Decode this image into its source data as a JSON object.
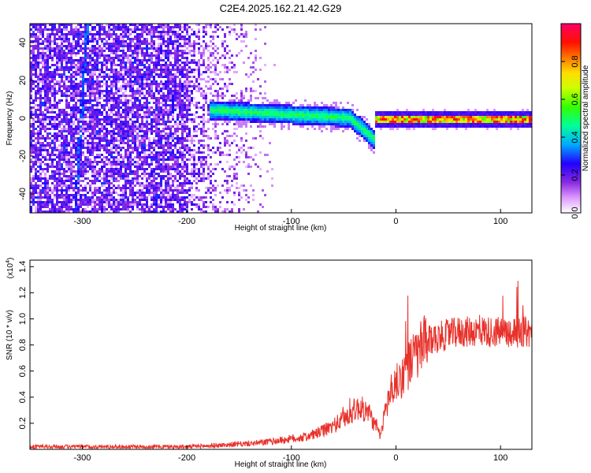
{
  "figure": {
    "title": "C2E4.2025.162.21.42.G29"
  },
  "chart_data": [
    {
      "type": "heatmap",
      "title": "C2E4.2025.162.21.42.G29",
      "xlabel": "Height of straight line (km)",
      "ylabel": "Frequency (Hz)",
      "xlim": [
        -350,
        130
      ],
      "ylim": [
        -50,
        50
      ],
      "x_ticks": [
        -300,
        -200,
        -100,
        0,
        100
      ],
      "y_ticks": [
        -40,
        -20,
        0,
        20,
        40
      ],
      "grid": false,
      "colorbar": {
        "label": "Normalized spectral amplitude",
        "range": [
          0,
          1
        ],
        "ticks": [
          0.0,
          0.2,
          0.4,
          0.6,
          0.8
        ],
        "tick_labels": [
          "0.0",
          "0.2",
          "0.4",
          "0.6",
          "0.8"
        ],
        "colormap": [
          "#ffffff",
          "#cc66ff",
          "#6600ff",
          "#0000ff",
          "#00ccff",
          "#00ff66",
          "#66ff00",
          "#ffff00",
          "#ff6600",
          "#ff0000",
          "#ff0066"
        ]
      },
      "features": {
        "noise_region_x": [
          -350,
          -115
        ],
        "signal_track_x": [
          -180,
          130
        ],
        "signal_track_freq_start": 5,
        "signal_track_freq_end": 0,
        "strong_tone_x": [
          -20,
          130
        ],
        "strong_tone_freq": 0
      }
    },
    {
      "type": "line",
      "xlabel": "Height of straight line (km)",
      "ylabel": "SNR (10 * v/v)",
      "y_multiplier": "(x10",
      "y_multiplier_exp": "4",
      "xlim": [
        -350,
        130
      ],
      "ylim": [
        0,
        1.45
      ],
      "x_ticks": [
        -300,
        -200,
        -100,
        0,
        100
      ],
      "y_ticks": [
        0.2,
        0.4,
        0.6,
        0.8,
        1.0,
        1.2,
        1.4
      ],
      "y_tick_labels": [
        "0.2",
        "0.4",
        "0.6",
        "0.8",
        "1.0",
        "1.2",
        "1.4"
      ],
      "grid": false,
      "series": [
        {
          "color": "#e8312a",
          "x": [
            -350,
            -300,
            -250,
            -200,
            -170,
            -150,
            -130,
            -110,
            -90,
            -80,
            -70,
            -60,
            -50,
            -40,
            -35,
            -30,
            -25,
            -20,
            -15,
            -10,
            -5,
            0,
            5,
            10,
            15,
            20,
            25,
            30,
            40,
            50,
            60,
            70,
            80,
            90,
            100,
            110,
            120,
            130
          ],
          "values": [
            0.02,
            0.02,
            0.02,
            0.02,
            0.03,
            0.04,
            0.05,
            0.07,
            0.09,
            0.11,
            0.14,
            0.18,
            0.23,
            0.3,
            0.32,
            0.3,
            0.27,
            0.18,
            0.1,
            0.3,
            0.45,
            0.5,
            0.55,
            0.62,
            0.68,
            0.73,
            0.78,
            0.82,
            0.86,
            0.88,
            0.9,
            0.9,
            0.91,
            0.9,
            0.9,
            0.9,
            0.9,
            0.9
          ]
        }
      ]
    }
  ]
}
